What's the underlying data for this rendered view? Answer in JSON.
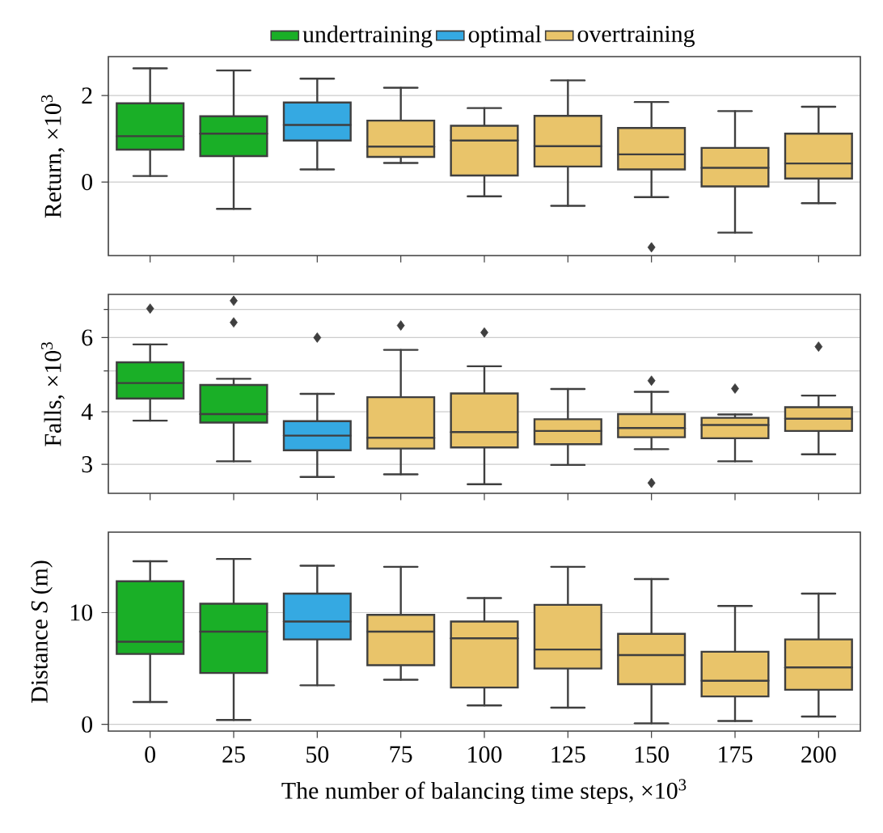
{
  "chart_data": [
    {
      "type": "box",
      "ylabel": "Return, ×10$^{3}$",
      "categories": [
        "0",
        "25",
        "50",
        "75",
        "100",
        "125",
        "150",
        "175",
        "200"
      ],
      "ylim": [
        -1.7,
        2.9
      ],
      "yticks": [
        0,
        2
      ],
      "grid": "y",
      "tick_labels": "y",
      "legend": "top",
      "series": [
        {
          "name": "undertraining",
          "color": "#1aaf27",
          "boxes": [
            {
              "low": 0.14,
              "q1": 0.75,
              "median": 1.06,
              "q3": 1.82,
              "high": 2.63
            },
            {
              "low": -0.62,
              "q1": 0.6,
              "median": 1.12,
              "q3": 1.52,
              "high": 2.58
            },
            null,
            null,
            null,
            null,
            null,
            null,
            null
          ]
        },
        {
          "name": "optimal",
          "color": "#35a9e2",
          "boxes": [
            null,
            null,
            {
              "low": 0.29,
              "q1": 0.96,
              "median": 1.32,
              "q3": 1.84,
              "high": 2.39
            },
            null,
            null,
            null,
            null,
            null,
            null
          ]
        },
        {
          "name": "overtraining",
          "color": "#e9c46a",
          "boxes": [
            null,
            null,
            null,
            {
              "low": 0.44,
              "q1": 0.58,
              "median": 0.82,
              "q3": 1.42,
              "high": 2.18
            },
            {
              "low": -0.33,
              "q1": 0.15,
              "median": 0.96,
              "q3": 1.3,
              "high": 1.71
            },
            {
              "low": -0.55,
              "q1": 0.36,
              "median": 0.83,
              "q3": 1.53,
              "high": 2.35
            },
            {
              "low": -0.35,
              "q1": 0.29,
              "median": 0.64,
              "q3": 1.25,
              "high": 1.85,
              "outliers": [
                -1.51
              ]
            },
            {
              "low": -1.17,
              "q1": -0.1,
              "median": 0.33,
              "q3": 0.79,
              "high": 1.64
            },
            {
              "low": -0.49,
              "q1": 0.08,
              "median": 0.43,
              "q3": 1.12,
              "high": 1.74
            }
          ]
        }
      ]
    },
    {
      "type": "box",
      "ylabel": "Falls, ×10$^{3}$",
      "categories": [
        "0",
        "25",
        "50",
        "75",
        "100",
        "125",
        "150",
        "175",
        "200"
      ],
      "log": "y",
      "ylim": [
        2.56,
        7.6
      ],
      "yticks": [
        3,
        4,
        {
          "value": 5,
          "label": null
        },
        6,
        {
          "value": 7,
          "label": null
        }
      ],
      "grid": "y",
      "tick_labels": "y",
      "series": [
        {
          "color": "#1aaf27",
          "boxes": [
            {
              "low": 3.81,
              "q1": 4.3,
              "median": 4.68,
              "q3": 5.24,
              "high": 5.78,
              "outliers": [
                7.03
              ]
            },
            {
              "low": 3.05,
              "q1": 3.77,
              "median": 3.95,
              "q3": 4.63,
              "high": 4.79,
              "outliers": [
                6.52,
                7.34
              ]
            },
            null,
            null,
            null,
            null,
            null,
            null,
            null
          ]
        },
        {
          "color": "#35a9e2",
          "boxes": [
            null,
            null,
            {
              "low": 2.8,
              "q1": 3.24,
              "median": 3.51,
              "q3": 3.8,
              "high": 4.41,
              "outliers": [
                6.0
              ]
            },
            null,
            null,
            null,
            null,
            null,
            null
          ]
        },
        {
          "color": "#e9c46a",
          "boxes": [
            null,
            null,
            null,
            {
              "low": 2.84,
              "q1": 3.27,
              "median": 3.47,
              "q3": 4.33,
              "high": 5.61,
              "outliers": [
                6.41
              ]
            },
            {
              "low": 2.69,
              "q1": 3.29,
              "median": 3.58,
              "q3": 4.42,
              "high": 5.13,
              "outliers": [
                6.17
              ]
            },
            {
              "low": 2.99,
              "q1": 3.35,
              "median": 3.6,
              "q3": 3.84,
              "high": 4.53
            },
            {
              "low": 3.26,
              "q1": 3.48,
              "median": 3.66,
              "q3": 3.95,
              "high": 4.46,
              "outliers": [
                4.74,
                2.71
              ]
            },
            {
              "low": 3.05,
              "q1": 3.46,
              "median": 3.72,
              "q3": 3.87,
              "high": 3.94,
              "outliers": [
                4.54
              ]
            },
            {
              "low": 3.17,
              "q1": 3.6,
              "median": 3.85,
              "q3": 4.1,
              "high": 4.37,
              "outliers": [
                5.71
              ]
            }
          ]
        }
      ]
    },
    {
      "type": "box",
      "ylabel": "Distance *S* (m)",
      "xlabel": "The number of balancing time steps, ×10$^{3}$",
      "categories": [
        "0",
        "25",
        "50",
        "75",
        "100",
        "125",
        "150",
        "175",
        "200"
      ],
      "ylim": [
        -0.6,
        17.2
      ],
      "yticks": [
        0,
        10
      ],
      "grid": "y",
      "series": [
        {
          "color": "#1aaf27",
          "boxes": [
            {
              "low": 2.0,
              "q1": 6.3,
              "median": 7.4,
              "q3": 12.8,
              "high": 14.6
            },
            {
              "low": 0.4,
              "q1": 4.6,
              "median": 8.3,
              "q3": 10.8,
              "high": 14.8
            },
            null,
            null,
            null,
            null,
            null,
            null,
            null
          ]
        },
        {
          "color": "#35a9e2",
          "boxes": [
            null,
            null,
            {
              "low": 3.5,
              "q1": 7.6,
              "median": 9.2,
              "q3": 11.7,
              "high": 14.2
            },
            null,
            null,
            null,
            null,
            null,
            null
          ]
        },
        {
          "color": "#e9c46a",
          "boxes": [
            null,
            null,
            null,
            {
              "low": 4.0,
              "q1": 5.3,
              "median": 8.3,
              "q3": 9.8,
              "high": 14.1
            },
            {
              "low": 1.7,
              "q1": 3.3,
              "median": 7.7,
              "q3": 9.2,
              "high": 11.3
            },
            {
              "low": 1.5,
              "q1": 5.0,
              "median": 6.7,
              "q3": 10.7,
              "high": 14.1
            },
            {
              "low": 0.1,
              "q1": 3.6,
              "median": 6.2,
              "q3": 8.1,
              "high": 13.0
            },
            {
              "low": 0.3,
              "q1": 2.5,
              "median": 3.9,
              "q3": 6.5,
              "high": 10.6
            },
            {
              "low": 0.7,
              "q1": 3.1,
              "median": 5.1,
              "q3": 7.6,
              "high": 11.7
            }
          ]
        }
      ]
    }
  ]
}
